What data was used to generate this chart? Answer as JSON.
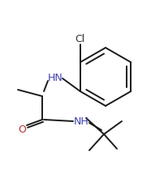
{
  "bg_color": "#ffffff",
  "line_color": "#1a1a1a",
  "atom_colors": {
    "N": "#4040b0",
    "O": "#b03030",
    "Cl": "#303030"
  },
  "figsize": [
    1.86,
    2.19
  ],
  "dpi": 100,
  "lw": 1.4,
  "fontsize": 9.0
}
